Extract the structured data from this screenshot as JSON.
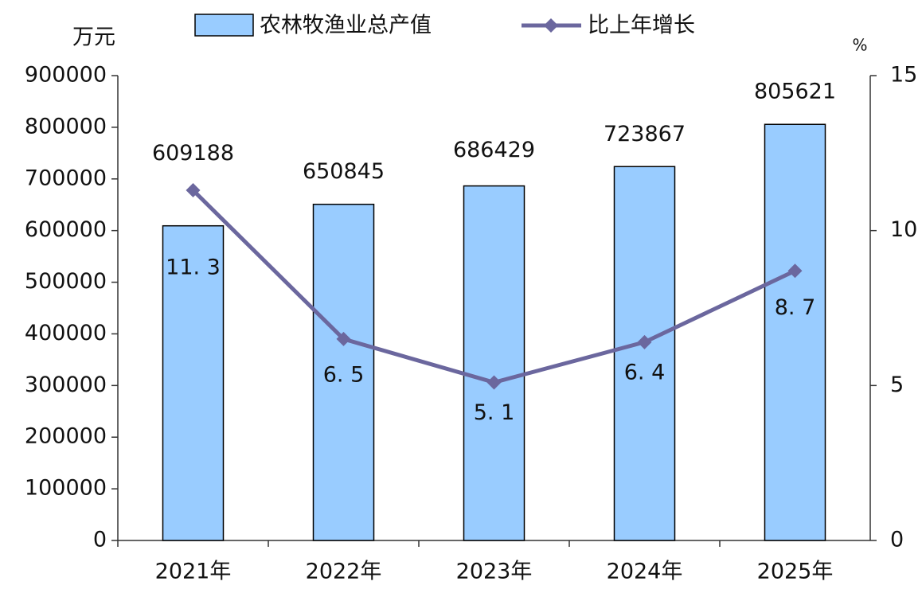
{
  "chart_data": {
    "type": "bar_line",
    "y_label": "万元",
    "y2_label": "%",
    "categories": [
      "2021年",
      "2022年",
      "2023年",
      "2024年",
      "2025年"
    ],
    "series": [
      {
        "name": "农林牧渔业总产值",
        "type": "bar",
        "color": "#99ccff",
        "values": [
          609188,
          650845,
          686429,
          723867,
          805621
        ]
      },
      {
        "name": "比上年增长",
        "type": "line",
        "axis": "y2",
        "color": "#6b679e",
        "values": [
          11.3,
          6.5,
          5.1,
          6.4,
          8.7
        ],
        "value_labels": [
          "11. 3",
          "6. 5",
          "5. 1",
          "6. 4",
          "8. 7"
        ]
      }
    ],
    "ylim": [
      0,
      900000
    ],
    "yticks": [
      0,
      100000,
      200000,
      300000,
      400000,
      500000,
      600000,
      700000,
      800000,
      900000
    ],
    "y2lim": [
      0,
      15
    ],
    "y2ticks": [
      0,
      5,
      10,
      15
    ],
    "legend": "top"
  }
}
